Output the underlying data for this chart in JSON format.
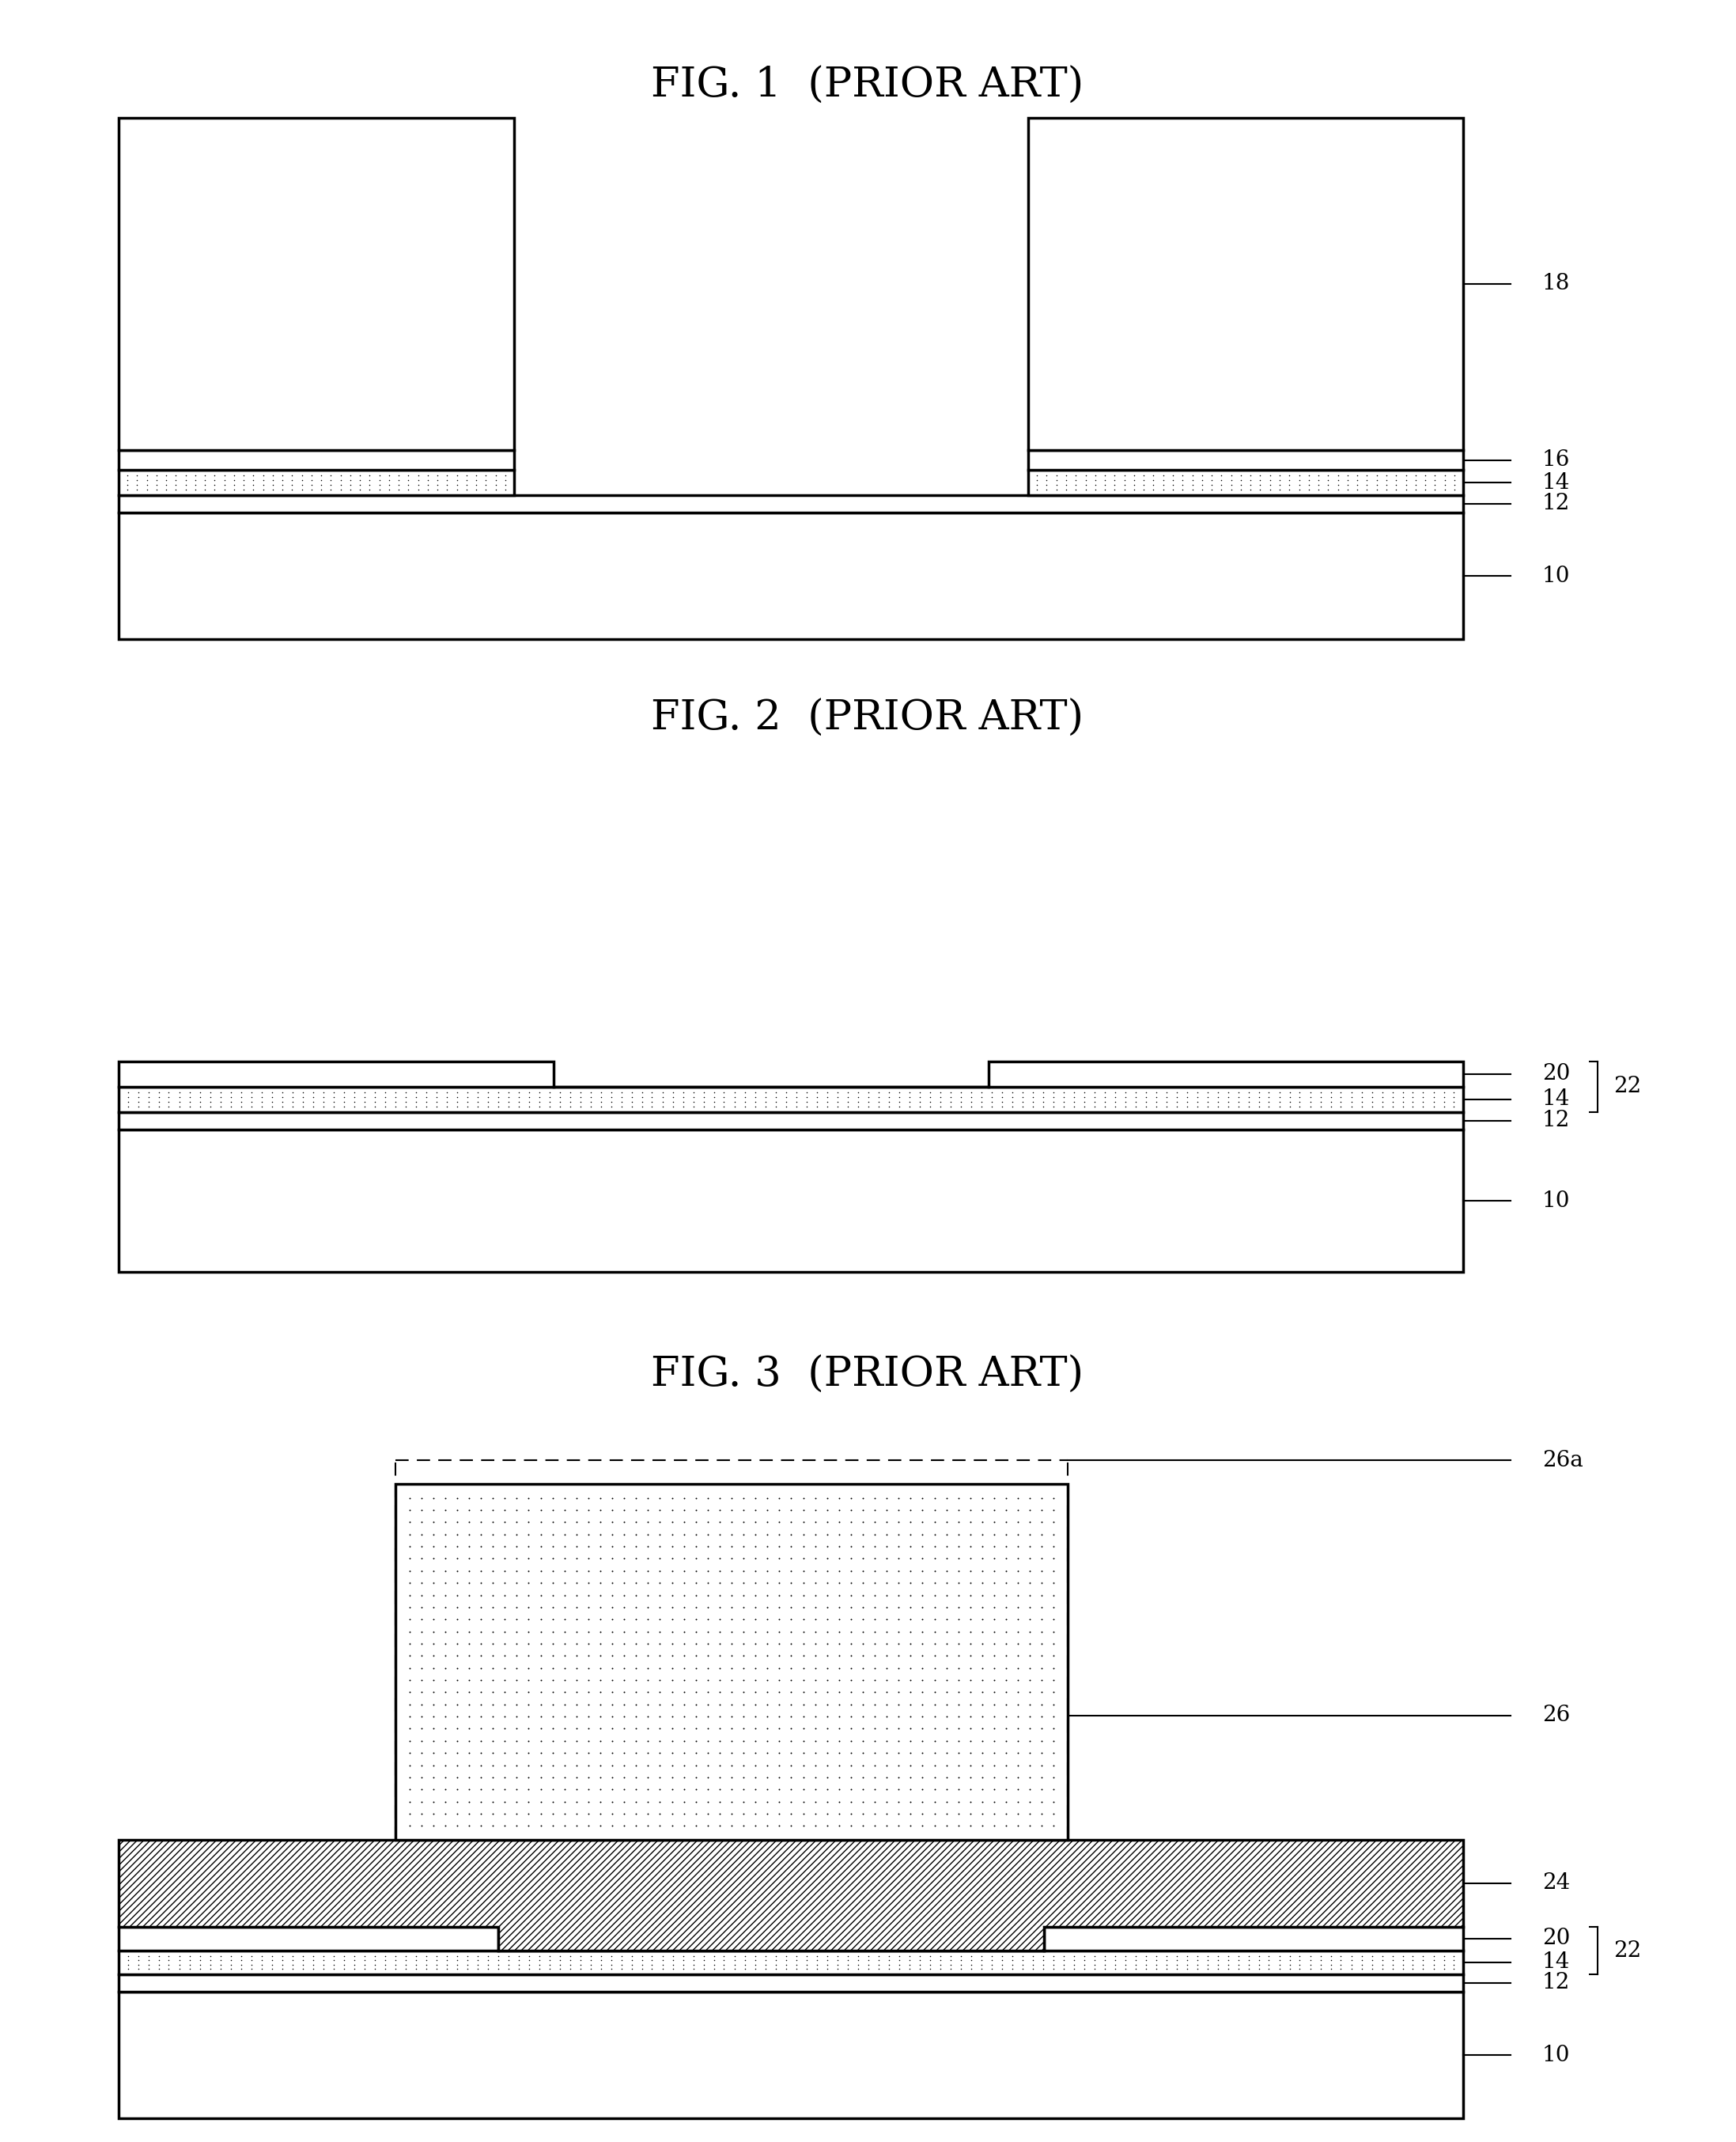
{
  "fig_titles": [
    "FIG. 1  (PRIOR ART)",
    "FIG. 2  (PRIOR ART)",
    "FIG. 3  (PRIOR ART)"
  ],
  "bg_color": "#ffffff",
  "lw": 2.5,
  "thin_lw": 1.5,
  "font_title": 38,
  "font_label": 20,
  "dot_ms": 2.2
}
